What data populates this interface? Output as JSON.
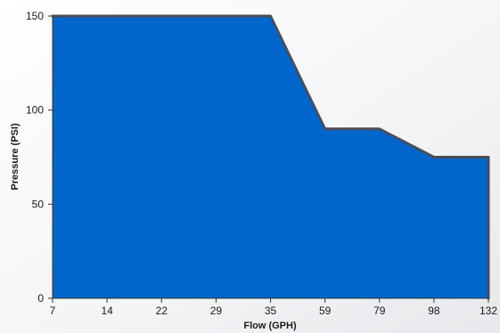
{
  "chart_data": {
    "type": "area",
    "categories": [
      "7",
      "14",
      "22",
      "29",
      "35",
      "59",
      "79",
      "98",
      "132"
    ],
    "values": [
      150,
      150,
      150,
      150,
      150,
      90,
      90,
      75,
      75
    ],
    "xlabel": "Flow (GPH)",
    "ylabel": "Pressure (PSI)",
    "ylim": [
      0,
      150
    ],
    "yticks": [
      "0",
      "50",
      "100",
      "150"
    ],
    "grid": false,
    "legend": "none",
    "colors": {
      "fill": "#0066cc",
      "line": "#4d4d55",
      "axis": "#333333",
      "background": "#f2f3f5"
    }
  }
}
